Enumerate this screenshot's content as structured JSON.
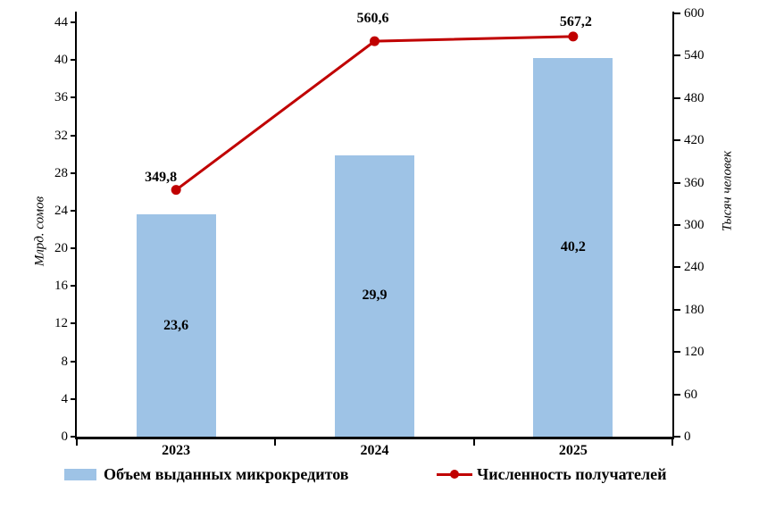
{
  "chart_data": {
    "type": "combo",
    "categories": [
      "2023",
      "2024",
      "2025"
    ],
    "series": [
      {
        "name": "Объем выданных микрокредитов",
        "type": "bar",
        "axis": "left",
        "values": [
          23.6,
          29.9,
          40.2
        ],
        "value_labels": [
          "23,6",
          "29,9",
          "40,2"
        ],
        "color": "#9EC3E6"
      },
      {
        "name": "Численность получателей",
        "type": "line",
        "axis": "right",
        "values": [
          349.8,
          560.6,
          567.2
        ],
        "value_labels": [
          "349,8",
          "560,6",
          "567,2"
        ],
        "color": "#C00000",
        "label_dx": [
          -17,
          -2,
          3
        ],
        "label_dy": [
          6,
          17,
          8
        ]
      }
    ],
    "left_axis": {
      "title": "Млрд. сомов",
      "min": 0,
      "max": 44,
      "step": 4,
      "tick_labels": [
        "0",
        "4",
        "8",
        "12",
        "16",
        "20",
        "24",
        "28",
        "32",
        "36",
        "40",
        "44"
      ]
    },
    "right_axis": {
      "title": "Тысяч человек",
      "min": 0,
      "max": 600,
      "step": 60,
      "tick_labels": [
        "0",
        "60",
        "120",
        "180",
        "240",
        "300",
        "360",
        "420",
        "480",
        "540",
        "600"
      ]
    },
    "legend_position": "bottom",
    "grid": false,
    "background": "#FFFFFF",
    "axis_color": "#000000",
    "text_color": "#000000"
  }
}
